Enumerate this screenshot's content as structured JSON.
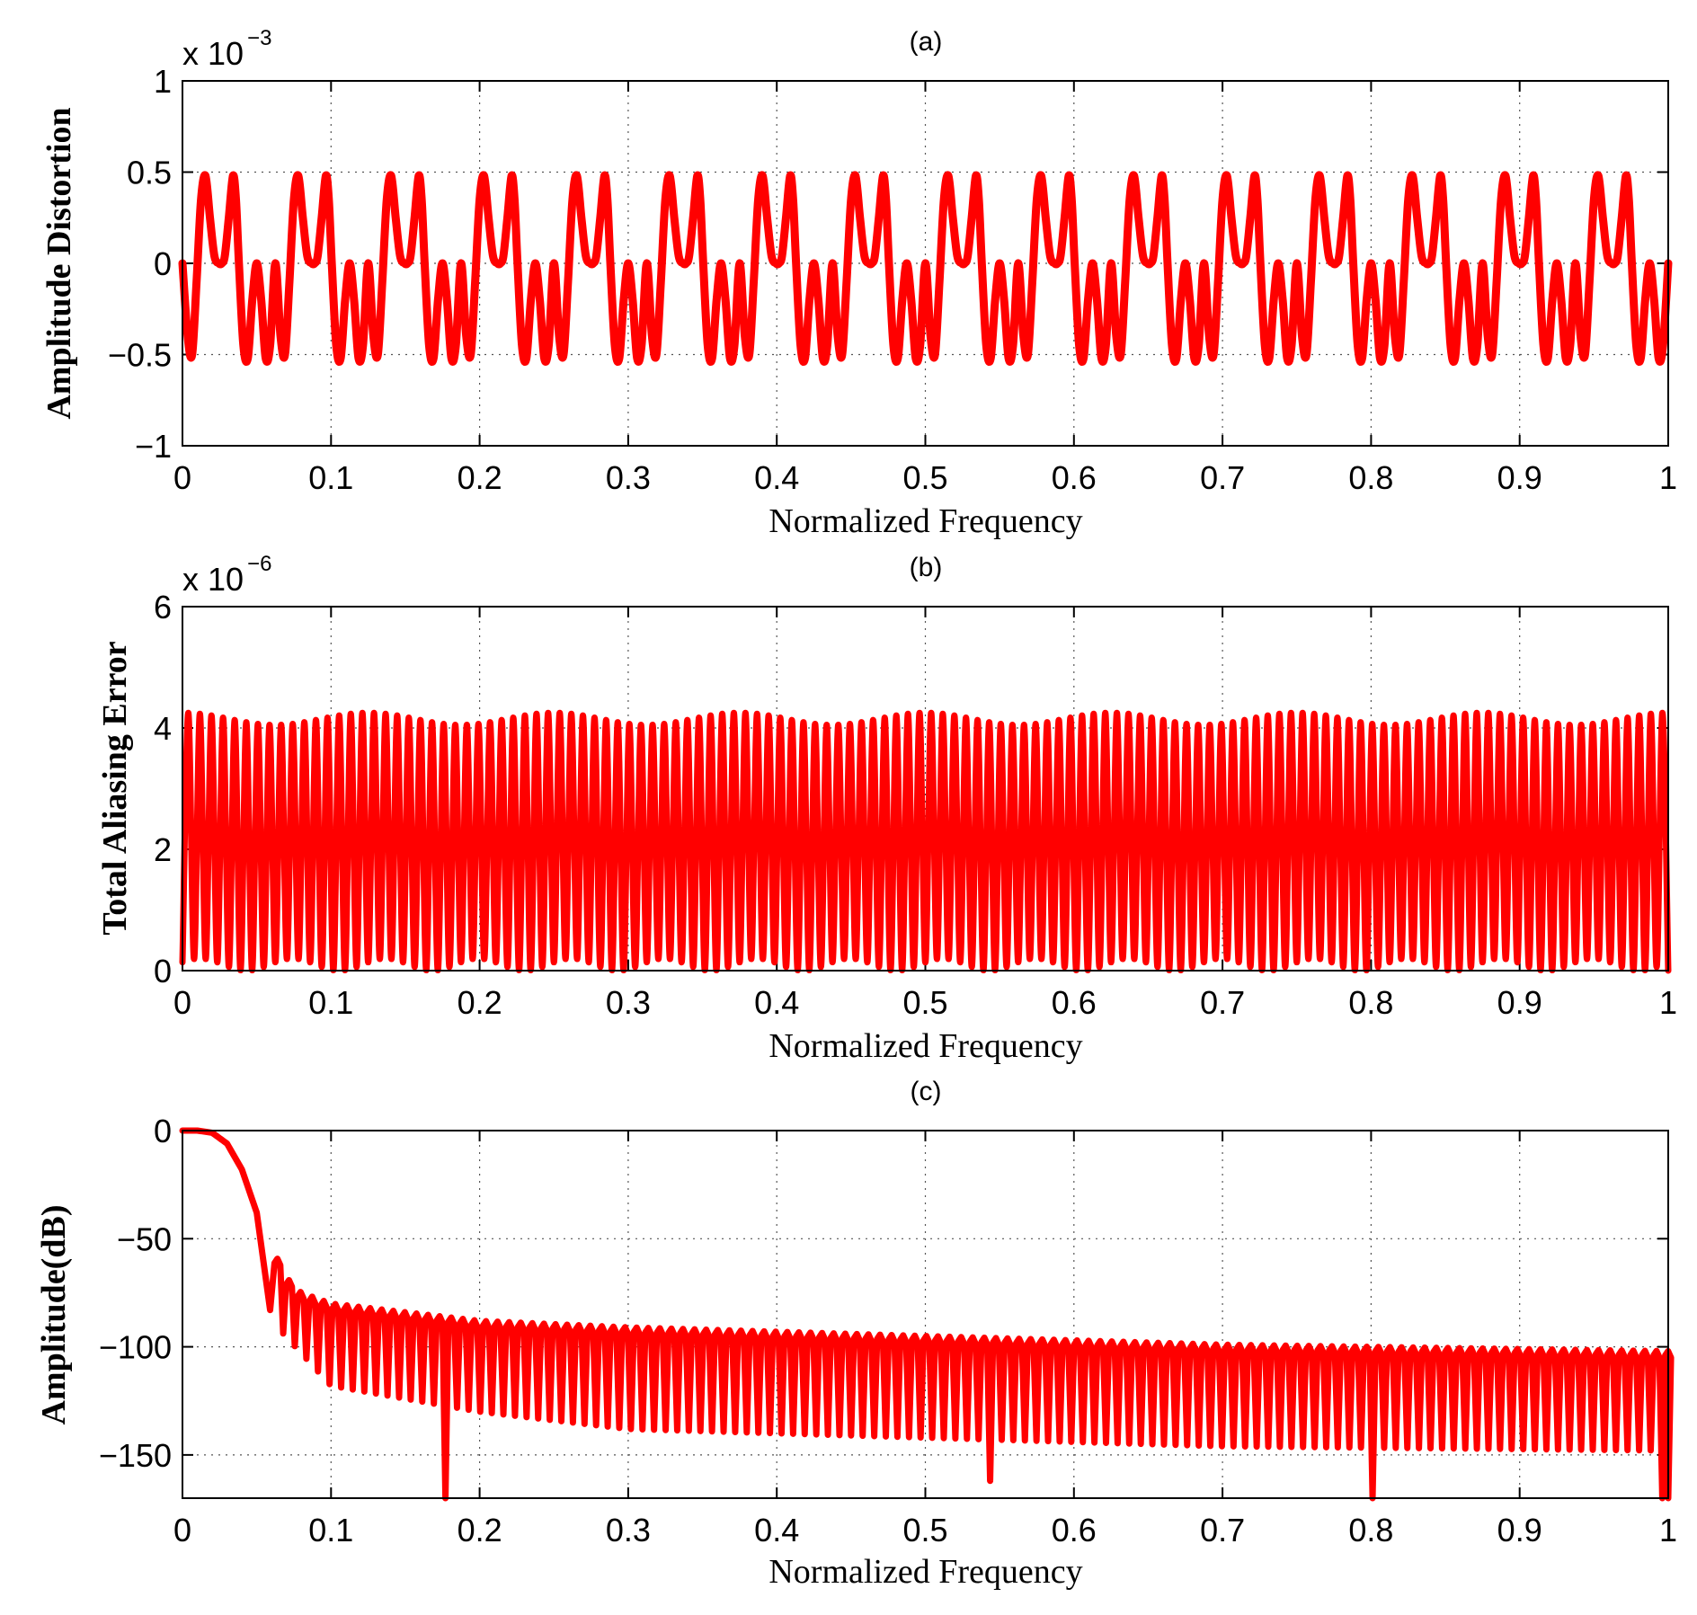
{
  "colors": {
    "series": "#ff0000",
    "axis": "#000000",
    "grid": "#555555",
    "background": "#ffffff"
  },
  "chart_data": [
    {
      "type": "line",
      "title": "(a)",
      "xlabel": "Normalized Frequency",
      "ylabel": "Amplitude Distortion",
      "y_multiplier": "x 10",
      "y_exponent": "−3",
      "xlim": [
        0,
        1
      ],
      "ylim": [
        -1,
        1
      ],
      "xticks": [
        0,
        0.1,
        0.2,
        0.3,
        0.4,
        0.5,
        0.6,
        0.7,
        0.8,
        0.9,
        1
      ],
      "xtick_labels": [
        "0",
        "0.1",
        "0.2",
        "0.3",
        "0.4",
        "0.5",
        "0.6",
        "0.7",
        "0.8",
        "0.9",
        "1"
      ],
      "yticks": [
        -1,
        -0.5,
        0,
        0.5,
        1
      ],
      "ytick_labels": [
        "−1",
        "−0.5",
        "0",
        "0.5",
        "1"
      ],
      "grid": true,
      "series": [
        {
          "pattern": "periodic",
          "period": 0.0625,
          "repeats": 16,
          "one_period": {
            "x": [
              0,
              0.0035,
              0.0065,
              0.0095,
              0.0125,
              0.0155,
              0.0185,
              0.0215,
              0.0245,
              0.0265,
              0.0285,
              0.0312,
              0.034,
              0.036,
              0.038,
              0.041,
              0.044,
              0.047,
              0.05,
              0.053,
              0.056,
              0.059,
              0.0625
            ],
            "y": [
              0,
              -0.4,
              -0.5,
              -0.1,
              0.35,
              0.48,
              0.25,
              0.04,
              0,
              0,
              0.04,
              0.25,
              0.48,
              0.35,
              0.0,
              -0.45,
              -0.52,
              -0.2,
              0,
              -0.2,
              -0.52,
              -0.45,
              0
            ]
          }
        }
      ]
    },
    {
      "type": "line",
      "title": "(b)",
      "xlabel": "Normalized Frequency",
      "ylabel": "Total Aliasing Error",
      "y_multiplier": "x 10",
      "y_exponent": "−6",
      "xlim": [
        0,
        1
      ],
      "ylim": [
        0,
        6
      ],
      "xticks": [
        0,
        0.1,
        0.2,
        0.3,
        0.4,
        0.5,
        0.6,
        0.7,
        0.8,
        0.9,
        1
      ],
      "xtick_labels": [
        "0",
        "0.1",
        "0.2",
        "0.3",
        "0.4",
        "0.5",
        "0.6",
        "0.7",
        "0.8",
        "0.9",
        "1"
      ],
      "yticks": [
        0,
        2,
        4,
        6
      ],
      "ytick_labels": [
        "0",
        "2",
        "4",
        "6"
      ],
      "grid": true,
      "series": [
        {
          "pattern": "oscillation",
          "cycles": 128,
          "peak_max": 4.25,
          "peak_min": 4.05,
          "trough_max": 0.2,
          "trough_min": 0.0,
          "envelope_period": 0.0625
        }
      ]
    },
    {
      "type": "line",
      "title": "(c)",
      "xlabel": "Normalized Frequency",
      "ylabel": "Amplitude(dB)",
      "xlim": [
        0,
        1
      ],
      "ylim": [
        -170,
        0
      ],
      "xticks": [
        0,
        0.1,
        0.2,
        0.3,
        0.4,
        0.5,
        0.6,
        0.7,
        0.8,
        0.9,
        1
      ],
      "xtick_labels": [
        "0",
        "0.1",
        "0.2",
        "0.3",
        "0.4",
        "0.5",
        "0.6",
        "0.7",
        "0.8",
        "0.9",
        "1"
      ],
      "yticks": [
        0,
        -50,
        -100,
        -150
      ],
      "ytick_labels": [
        "0",
        "−50",
        "−100",
        "−150"
      ],
      "grid": true,
      "series": [
        {
          "pattern": "lowpass",
          "passband": {
            "x": [
              0,
              0.01,
              0.02,
              0.03,
              0.04,
              0.05,
              0.06
            ],
            "y": [
              0,
              0,
              -1,
              -6,
              -18,
              -38,
              -88
            ]
          },
          "sidelobe_start": 0.06,
          "sidelobe_spacing": 0.0078,
          "sidelobe_peaks": {
            "x": [
              0.063,
              0.07,
              0.08,
              0.1,
              0.15,
              0.2,
              0.3,
              0.4,
              0.5,
              0.6,
              0.7,
              0.8,
              0.9,
              1.0
            ],
            "y": [
              -58,
              -68,
              -75,
              -80,
              -84,
              -88,
              -91,
              -93,
              -95,
              -97,
              -99,
              -100,
              -101,
              -102
            ]
          },
          "null_depth": {
            "x": [
              0.06,
              0.1,
              0.2,
              0.3,
              0.5,
              0.7,
              1.0
            ],
            "y": [
              -88,
              -118,
              -130,
              -138,
              -142,
              -146,
              -148
            ]
          },
          "deep_nulls": [
            {
              "x": 0.177,
              "y": -170
            },
            {
              "x": 0.545,
              "y": -162
            },
            {
              "x": 0.802,
              "y": -170
            },
            {
              "x": 0.999,
              "y": -170
            }
          ]
        }
      ]
    }
  ]
}
